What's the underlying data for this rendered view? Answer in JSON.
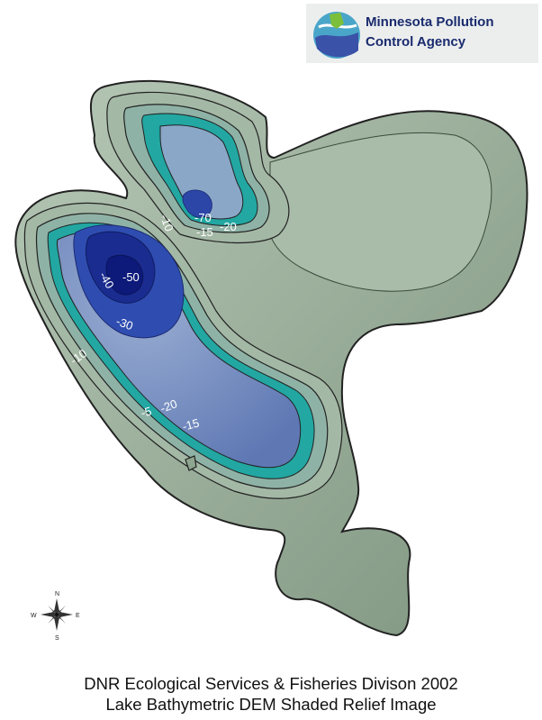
{
  "logo": {
    "line1": "Minnesota Pollution",
    "line2": "Control Agency"
  },
  "caption": {
    "line1": "DNR Ecological Services & Fisheries Divison 2002",
    "line2": "Lake Bathymetric DEM Shaded Relief Image"
  },
  "depth_labels": {
    "n10": "-10",
    "n70": "-70",
    "n15_north": "-15",
    "n20_north": "-20",
    "n40": "-40",
    "n50": "-50",
    "n30": "-30",
    "n10_west": "-10",
    "n20_south": "-20",
    "n5": "-5",
    "n15_south": "-15"
  },
  "compass": {
    "n": "N",
    "s": "S",
    "e": "E",
    "w": "W"
  },
  "colors": {
    "shore": "#8ea58f",
    "shallow": "#a9c0ad",
    "teal": "#1fa6a2",
    "mid_blue": "#7d96c2",
    "deep_blue": "#2a44a8",
    "deepest": "#0d1a7a"
  }
}
